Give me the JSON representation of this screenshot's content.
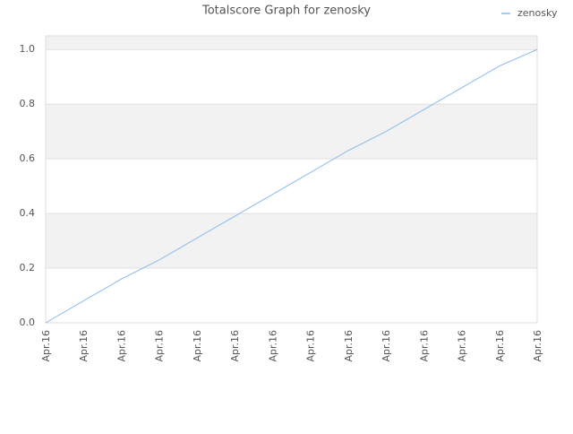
{
  "chart_data": {
    "type": "line",
    "title": "Totalscore Graph for zenosky",
    "categories": [
      "Apr.16",
      "Apr.16",
      "Apr.16",
      "Apr.16",
      "Apr.16",
      "Apr.16",
      "Apr.16",
      "Apr.16",
      "Apr.16",
      "Apr.16",
      "Apr.16",
      "Apr.16",
      "Apr.16",
      "Apr.16"
    ],
    "series": [
      {
        "name": "zenosky",
        "color": "#88bbee",
        "values": [
          0,
          0.08,
          0.16,
          0.23,
          0.31,
          0.39,
          0.47,
          0.55,
          0.63,
          0.7,
          0.78,
          0.86,
          0.94,
          1.0
        ]
      }
    ],
    "ylim": [
      0,
      1.05
    ],
    "yticks": [
      {
        "value": 0,
        "label": "0.0"
      },
      0.2,
      0.4,
      0.6,
      0.8,
      {
        "value": 1,
        "label": "1.0"
      }
    ],
    "grid": true,
    "legend": "top-right"
  }
}
